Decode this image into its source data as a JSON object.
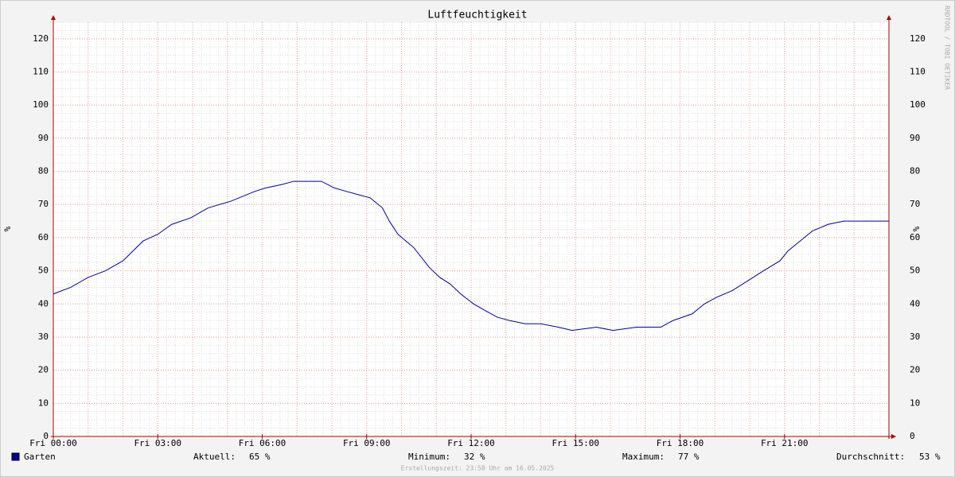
{
  "chart_data": {
    "type": "line",
    "title": "Luftfeuchtigkeit",
    "y_label": "%",
    "watermark": "RRDTOOL / TOBI OETIKER",
    "xlim": [
      0,
      24
    ],
    "ylim": [
      0,
      125
    ],
    "xticks": [
      {
        "value": 0,
        "label": "Fri 00:00"
      },
      {
        "value": 3,
        "label": "Fri 03:00"
      },
      {
        "value": 6,
        "label": "Fri 06:00"
      },
      {
        "value": 9,
        "label": "Fri 09:00"
      },
      {
        "value": 12,
        "label": "Fri 12:00"
      },
      {
        "value": 15,
        "label": "Fri 15:00"
      },
      {
        "value": 18,
        "label": "Fri 18:00"
      },
      {
        "value": 21,
        "label": "Fri 21:00"
      }
    ],
    "yticks": [
      0,
      10,
      20,
      30,
      40,
      50,
      60,
      70,
      80,
      90,
      100,
      110,
      120
    ],
    "x_major_step": 1,
    "x_minor_step": 0.25,
    "y_minor_step": 2.5,
    "grid": true,
    "x": [
      0,
      0.5,
      1,
      1.5,
      2,
      2.58,
      3,
      3.4,
      3.95,
      4.45,
      5.1,
      5.8,
      6.1,
      6.55,
      6.9,
      7.7,
      8.07,
      8.4,
      8.75,
      9.1,
      9.45,
      9.65,
      9.9,
      10.35,
      10.8,
      11.1,
      11.4,
      11.7,
      12.07,
      12.4,
      12.75,
      13.1,
      13.55,
      14,
      14.5,
      14.9,
      15.6,
      16.07,
      16.75,
      17.45,
      17.8,
      18.35,
      18.7,
      19.05,
      19.5,
      19.95,
      20.4,
      20.87,
      21.1,
      21.45,
      21.8,
      22.25,
      22.7,
      24
    ],
    "series": [
      {
        "name": "Garten",
        "color": "#000099",
        "values": [
          43,
          45,
          48,
          50,
          53,
          59,
          61,
          64,
          66,
          69,
          71,
          74,
          75,
          76,
          77,
          77,
          75,
          74,
          73,
          72,
          69,
          65,
          61,
          57,
          51,
          48,
          46,
          43,
          40,
          38,
          36,
          35,
          34,
          34,
          33,
          32,
          33,
          32,
          33,
          33,
          35,
          37,
          40,
          42,
          44,
          47,
          50,
          53,
          56,
          59,
          62,
          64,
          65,
          65
        ]
      }
    ],
    "legend": {
      "Aktuell": {
        "label": "Aktuell:",
        "text": "65 %"
      },
      "Minimum": {
        "label": "Minimum:",
        "text": "32 %"
      },
      "Maximum": {
        "label": "Maximum:",
        "text": "77 %"
      },
      "Durchschnitt": {
        "label": "Durchschnitt:",
        "text": "53 %"
      }
    },
    "footer": "Erstellungszeit: 23:58 Uhr am 16.05.2025"
  }
}
